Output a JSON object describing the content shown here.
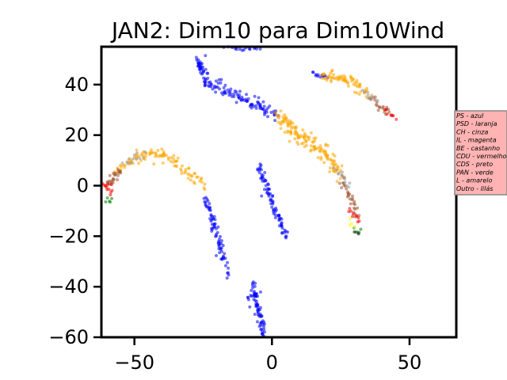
{
  "chart_data": {
    "type": "scatter",
    "title": "JAN2: Dim10 para Dim10Wind",
    "xlabel": "",
    "ylabel": "",
    "xlim": [
      -62,
      67
    ],
    "ylim": [
      -60,
      55
    ],
    "xticks": [
      {
        "value": -50,
        "label": "−50"
      },
      {
        "value": 0,
        "label": "0"
      },
      {
        "value": 50,
        "label": "50"
      }
    ],
    "yticks": [
      {
        "value": -60,
        "label": "−60"
      },
      {
        "value": -40,
        "label": "−40"
      },
      {
        "value": -20,
        "label": "−20"
      },
      {
        "value": 0,
        "label": "0"
      },
      {
        "value": 20,
        "label": "20"
      },
      {
        "value": 40,
        "label": "40"
      }
    ],
    "grid": false,
    "legend": {
      "placement": "right-outside",
      "background": "#ffb3b3",
      "entries": [
        "PS - azul",
        "PSD - laranja",
        "CH - cinza",
        "IL - magenta",
        "BE - castanho",
        "CDU - vermelho",
        "CDS - preto",
        "PAN - verde",
        "L - amarelo",
        "Outro - lilás"
      ]
    },
    "series": [
      {
        "color": "#0000ff",
        "segments": [
          {
            "from": [
              -27,
              51
            ],
            "to": [
              -24,
              41
            ],
            "n": 40,
            "spread": 1.2
          },
          {
            "from": [
              -24,
              41
            ],
            "to": [
              -8,
              33
            ],
            "n": 60,
            "spread": 1.2
          },
          {
            "from": [
              -8,
              33
            ],
            "to": [
              2,
              28
            ],
            "n": 40,
            "spread": 1.4
          },
          {
            "from": [
              -18,
              55
            ],
            "to": [
              -4,
              54
            ],
            "n": 20,
            "spread": 0.6
          },
          {
            "from": [
              -24,
              -5
            ],
            "to": [
              -17,
              -30
            ],
            "n": 70,
            "spread": 1.0
          },
          {
            "from": [
              -16,
              -33
            ],
            "to": [
              -16,
              -36
            ],
            "n": 5,
            "spread": 0.4
          },
          {
            "from": [
              -5,
              8
            ],
            "to": [
              5,
              -20
            ],
            "n": 80,
            "spread": 0.9
          },
          {
            "from": [
              -7,
              -39
            ],
            "to": [
              -3,
              -59
            ],
            "n": 70,
            "spread": 1.2
          },
          {
            "from": [
              -9,
              -44
            ],
            "to": [
              -8,
              -46
            ],
            "n": 4,
            "spread": 0.5
          },
          {
            "from": [
              15,
              44
            ],
            "to": [
              20,
              43
            ],
            "n": 14,
            "spread": 0.6
          }
        ]
      },
      {
        "color": "#ffa500",
        "segments": [
          {
            "from": [
              -57,
              5
            ],
            "to": [
              -50,
              11
            ],
            "n": 20,
            "spread": 1.0
          },
          {
            "from": [
              -50,
              11
            ],
            "to": [
              -40,
              13
            ],
            "n": 35,
            "spread": 1.2
          },
          {
            "from": [
              -40,
              13
            ],
            "to": [
              -25,
              0
            ],
            "n": 50,
            "spread": 1.4
          },
          {
            "from": [
              2,
              28
            ],
            "to": [
              10,
              20
            ],
            "n": 55,
            "spread": 1.8
          },
          {
            "from": [
              10,
              20
            ],
            "to": [
              20,
              12
            ],
            "n": 55,
            "spread": 1.8
          },
          {
            "from": [
              20,
              12
            ],
            "to": [
              25,
              5
            ],
            "n": 35,
            "spread": 1.6
          },
          {
            "from": [
              18,
              44
            ],
            "to": [
              28,
              42
            ],
            "n": 40,
            "spread": 1.0
          },
          {
            "from": [
              28,
              42
            ],
            "to": [
              35,
              36
            ],
            "n": 30,
            "spread": 1.2
          }
        ]
      },
      {
        "color": "#a0522d",
        "segments": [
          {
            "from": [
              -60,
              0
            ],
            "to": [
              -55,
              6
            ],
            "n": 25,
            "spread": 0.9
          },
          {
            "from": [
              25,
              3
            ],
            "to": [
              31,
              -12
            ],
            "n": 30,
            "spread": 1.0
          },
          {
            "from": [
              36,
              35
            ],
            "to": [
              43,
              29
            ],
            "n": 20,
            "spread": 0.9
          }
        ]
      },
      {
        "color": "#999999",
        "segments": [
          {
            "from": [
              -54,
              9
            ],
            "to": [
              -47,
              13
            ],
            "n": 12,
            "spread": 1.0
          },
          {
            "from": [
              23,
              6
            ],
            "to": [
              28,
              0
            ],
            "n": 12,
            "spread": 1.0
          },
          {
            "from": [
              33,
              37
            ],
            "to": [
              38,
              34
            ],
            "n": 8,
            "spread": 0.8
          }
        ]
      },
      {
        "color": "#ff0000",
        "segments": [
          {
            "from": [
              -61,
              0
            ],
            "to": [
              -58,
              -2
            ],
            "n": 12,
            "spread": 0.8
          },
          {
            "from": [
              28,
              -10
            ],
            "to": [
              32,
              -14
            ],
            "n": 10,
            "spread": 0.8
          },
          {
            "from": [
              41,
              30
            ],
            "to": [
              45,
              27
            ],
            "n": 8,
            "spread": 0.7
          }
        ]
      },
      {
        "color": "#008000",
        "segments": [
          {
            "from": [
              -60,
              -5
            ],
            "to": [
              -58,
              -6
            ],
            "n": 5,
            "spread": 0.6
          },
          {
            "from": [
              30,
              -17
            ],
            "to": [
              32,
              -19
            ],
            "n": 5,
            "spread": 0.6
          }
        ]
      },
      {
        "color": "#000000",
        "segments": [
          {
            "from": [
              30,
              -18
            ],
            "to": [
              32,
              -19
            ],
            "n": 2,
            "spread": 0.4
          }
        ]
      },
      {
        "color": "#ffff00",
        "segments": [
          {
            "from": [
              28,
              -14
            ],
            "to": [
              30,
              -16
            ],
            "n": 4,
            "spread": 0.6
          }
        ]
      }
    ]
  }
}
